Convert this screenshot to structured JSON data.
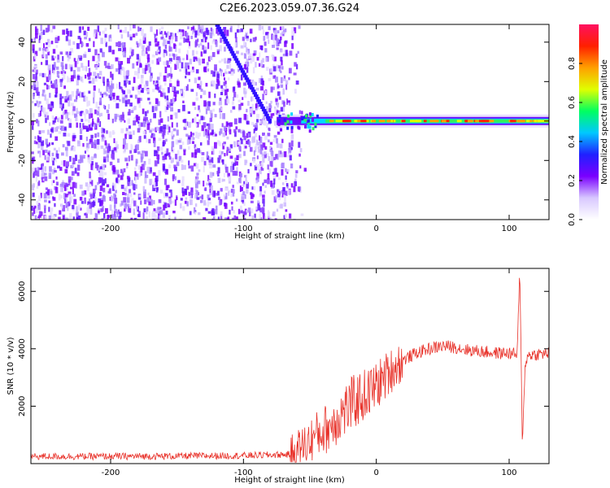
{
  "title": "C2E6.2023.059.07.36.G24",
  "chart_data": [
    {
      "type": "heatmap",
      "title": "",
      "xlabel": "Height of straight line (km)",
      "ylabel": "Frequency (Hz)",
      "xlim": [
        -260,
        130
      ],
      "ylim": [
        -50,
        49
      ],
      "xticks": [
        -200,
        -100,
        0,
        100
      ],
      "yticks": [
        -40,
        -20,
        0,
        20,
        40
      ],
      "colorbar": {
        "label": "Normalized spectral amplitude",
        "range": [
          0.0,
          1.0
        ],
        "ticks": [
          0.0,
          0.2,
          0.4,
          0.6,
          0.8
        ],
        "colormap": [
          "#ffffff",
          "#d8c8ff",
          "#7a00ff",
          "#2020ff",
          "#00c8ff",
          "#00ff60",
          "#e0ff00",
          "#ffa000",
          "#ff2000",
          "#ff1060"
        ]
      },
      "features": {
        "noise_region_x": [
          -260,
          -60
        ],
        "carrier_freq_hz": 0,
        "carrier_start_x": -75,
        "diagonal_track": {
          "x": [
            -120,
            -80
          ],
          "y": [
            49,
            0
          ]
        }
      }
    },
    {
      "type": "line",
      "title": "",
      "xlabel": "Height of straight line (km)",
      "ylabel": "SNR (10 * v/v)",
      "xlim": [
        -260,
        130
      ],
      "ylim": [
        0,
        6800
      ],
      "xticks": [
        -200,
        -100,
        0,
        100
      ],
      "yticks": [
        2000,
        4000,
        6000
      ],
      "series": [
        {
          "color": "#e8322a",
          "x": [
            -260,
            -200,
            -150,
            -100,
            -80,
            -65,
            -55,
            -45,
            -35,
            -25,
            -15,
            -5,
            0,
            10,
            20,
            30,
            40,
            50,
            60,
            70,
            80,
            90,
            100,
            106,
            108,
            110,
            112,
            115,
            120,
            130
          ],
          "y": [
            250,
            250,
            260,
            280,
            300,
            320,
            600,
            1000,
            1300,
            1800,
            2200,
            2500,
            2700,
            3200,
            3600,
            3850,
            4000,
            4100,
            4050,
            3950,
            3900,
            3850,
            3850,
            3800,
            6700,
            600,
            3500,
            3800,
            3800,
            3850
          ]
        }
      ]
    }
  ]
}
